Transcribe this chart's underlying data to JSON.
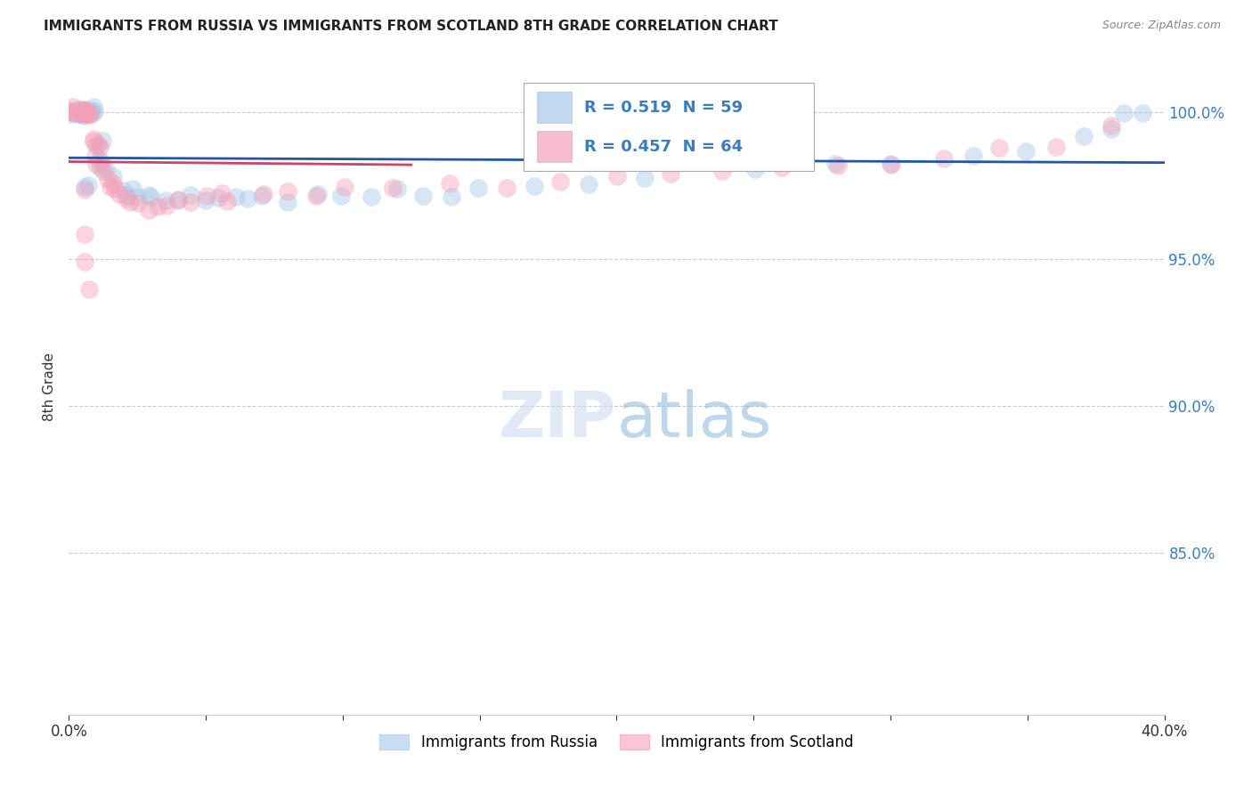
{
  "title": "IMMIGRANTS FROM RUSSIA VS IMMIGRANTS FROM SCOTLAND 8TH GRADE CORRELATION CHART",
  "source": "Source: ZipAtlas.com",
  "ylabel": "8th Grade",
  "R_russia": 0.519,
  "N_russia": 59,
  "R_scotland": 0.457,
  "N_scotland": 64,
  "color_russia": "#a8c8e8",
  "color_scotland": "#f4a0b8",
  "trendline_russia": "#2255aa",
  "trendline_scotland": "#cc4466",
  "legend_label_russia": "Immigrants from Russia",
  "legend_label_scotland": "Immigrants from Scotland",
  "xlim": [
    0.0,
    0.4
  ],
  "ylim": [
    0.795,
    1.018
  ],
  "ytick_vals": [
    0.85,
    0.9,
    0.95,
    1.0
  ],
  "ytick_labels": [
    "85.0%",
    "90.0%",
    "95.0%",
    "100.0%"
  ],
  "xtick_vals": [
    0.0,
    0.05,
    0.1,
    0.15,
    0.2,
    0.25,
    0.3,
    0.35,
    0.4
  ],
  "xtick_labels": [
    "0.0%",
    "",
    "",
    "",
    "",
    "",
    "",
    "",
    "40.0%"
  ],
  "russia_x": [
    0.001,
    0.002,
    0.002,
    0.003,
    0.003,
    0.004,
    0.004,
    0.005,
    0.005,
    0.006,
    0.006,
    0.007,
    0.007,
    0.008,
    0.008,
    0.009,
    0.01,
    0.01,
    0.011,
    0.012,
    0.013,
    0.015,
    0.016,
    0.018,
    0.02,
    0.022,
    0.025,
    0.028,
    0.03,
    0.035,
    0.04,
    0.045,
    0.05,
    0.055,
    0.06,
    0.065,
    0.07,
    0.08,
    0.09,
    0.1,
    0.11,
    0.12,
    0.13,
    0.14,
    0.15,
    0.17,
    0.19,
    0.21,
    0.25,
    0.28,
    0.3,
    0.33,
    0.35,
    0.37,
    0.38,
    0.385,
    0.39,
    0.005,
    0.007
  ],
  "russia_y": [
    1.0,
    1.0,
    1.0,
    1.0,
    1.0,
    1.0,
    1.0,
    1.0,
    1.0,
    1.0,
    1.0,
    1.0,
    1.0,
    1.0,
    1.0,
    1.0,
    1.0,
    0.99,
    0.99,
    0.985,
    0.982,
    0.979,
    0.977,
    0.975,
    0.972,
    0.974,
    0.973,
    0.972,
    0.971,
    0.97,
    0.972,
    0.971,
    0.97,
    0.971,
    0.972,
    0.97,
    0.971,
    0.97,
    0.972,
    0.971,
    0.973,
    0.974,
    0.973,
    0.972,
    0.974,
    0.975,
    0.976,
    0.978,
    0.98,
    0.982,
    0.983,
    0.985,
    0.987,
    0.99,
    0.995,
    1.0,
    1.0,
    0.975,
    0.975
  ],
  "scotland_x": [
    0.001,
    0.001,
    0.002,
    0.002,
    0.003,
    0.003,
    0.003,
    0.004,
    0.004,
    0.005,
    0.005,
    0.005,
    0.006,
    0.006,
    0.006,
    0.007,
    0.007,
    0.008,
    0.008,
    0.009,
    0.009,
    0.01,
    0.01,
    0.011,
    0.012,
    0.013,
    0.014,
    0.015,
    0.016,
    0.017,
    0.018,
    0.02,
    0.022,
    0.025,
    0.028,
    0.032,
    0.036,
    0.04,
    0.045,
    0.05,
    0.055,
    0.06,
    0.07,
    0.08,
    0.09,
    0.1,
    0.12,
    0.14,
    0.16,
    0.18,
    0.2,
    0.22,
    0.24,
    0.26,
    0.28,
    0.3,
    0.32,
    0.34,
    0.36,
    0.38,
    0.005,
    0.006,
    0.007,
    0.008
  ],
  "scotland_y": [
    1.0,
    1.0,
    1.0,
    1.0,
    1.0,
    1.0,
    1.0,
    1.0,
    1.0,
    1.0,
    1.0,
    1.0,
    1.0,
    1.0,
    1.0,
    1.0,
    1.0,
    1.0,
    0.99,
    0.99,
    0.99,
    0.988,
    0.986,
    0.984,
    0.982,
    0.98,
    0.978,
    0.977,
    0.975,
    0.973,
    0.972,
    0.971,
    0.97,
    0.969,
    0.968,
    0.967,
    0.968,
    0.969,
    0.97,
    0.971,
    0.972,
    0.971,
    0.972,
    0.973,
    0.972,
    0.975,
    0.974,
    0.976,
    0.975,
    0.976,
    0.978,
    0.979,
    0.98,
    0.981,
    0.982,
    0.983,
    0.985,
    0.987,
    0.99,
    0.995,
    0.975,
    0.96,
    0.95,
    0.94
  ],
  "trendline_russia_pts": [
    [
      0.0,
      0.967
    ],
    [
      0.4,
      0.983
    ]
  ],
  "trendline_scotland_pts": [
    [
      0.0,
      0.975
    ],
    [
      0.12,
      0.985
    ]
  ]
}
